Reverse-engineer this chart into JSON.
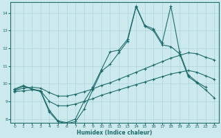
{
  "xlabel": "Humidex (Indice chaleur)",
  "xlim": [
    -0.5,
    23.5
  ],
  "ylim": [
    7.8,
    14.6
  ],
  "yticks": [
    8,
    9,
    10,
    11,
    12,
    13,
    14
  ],
  "xticks": [
    0,
    1,
    2,
    3,
    4,
    5,
    6,
    7,
    8,
    9,
    10,
    11,
    12,
    13,
    14,
    15,
    16,
    17,
    18,
    19,
    20,
    21,
    22,
    23
  ],
  "bg_color": "#cce9ee",
  "line_color": "#1c6b6a",
  "grid_color": "#aad4db",
  "line1_x": [
    0,
    1,
    2,
    3,
    4,
    5,
    6,
    7,
    8,
    9,
    10,
    11,
    12,
    13,
    14,
    15,
    16,
    17,
    18,
    19,
    20,
    21,
    22
  ],
  "line1_y": [
    9.7,
    9.9,
    9.7,
    9.6,
    8.5,
    7.9,
    7.8,
    8.0,
    9.0,
    9.8,
    10.8,
    11.8,
    11.9,
    12.5,
    14.4,
    13.3,
    13.1,
    12.3,
    14.4,
    11.8,
    10.5,
    10.1,
    9.8
  ],
  "line2_x": [
    0,
    1,
    2,
    3,
    4,
    5,
    6,
    7,
    8,
    9,
    10,
    11,
    12,
    13,
    14,
    15,
    16,
    17,
    18,
    19,
    20,
    21,
    22,
    23
  ],
  "line2_y": [
    9.65,
    9.85,
    9.7,
    9.55,
    8.4,
    7.85,
    7.75,
    7.85,
    8.55,
    9.65,
    10.7,
    11.1,
    11.75,
    12.4,
    14.35,
    13.25,
    13.0,
    12.2,
    12.1,
    11.7,
    10.4,
    10.05,
    9.65,
    9.2
  ],
  "line3_x": [
    0,
    1,
    2,
    3,
    4,
    5,
    6,
    7,
    8,
    9,
    10,
    11,
    12,
    13,
    14,
    15,
    16,
    17,
    18,
    19,
    20,
    21,
    22,
    23
  ],
  "line3_y": [
    9.6,
    9.75,
    9.8,
    9.75,
    9.5,
    9.3,
    9.3,
    9.4,
    9.55,
    9.7,
    9.9,
    10.05,
    10.25,
    10.45,
    10.65,
    10.85,
    11.05,
    11.25,
    11.45,
    11.6,
    11.75,
    11.7,
    11.5,
    11.35
  ],
  "line4_x": [
    0,
    1,
    2,
    3,
    4,
    5,
    6,
    7,
    8,
    9,
    10,
    11,
    12,
    13,
    14,
    15,
    16,
    17,
    18,
    19,
    20,
    21,
    22,
    23
  ],
  "line4_y": [
    9.55,
    9.6,
    9.65,
    9.6,
    9.0,
    8.75,
    8.75,
    8.85,
    9.0,
    9.15,
    9.35,
    9.5,
    9.65,
    9.8,
    9.95,
    10.1,
    10.25,
    10.4,
    10.55,
    10.65,
    10.75,
    10.65,
    10.45,
    10.25
  ]
}
